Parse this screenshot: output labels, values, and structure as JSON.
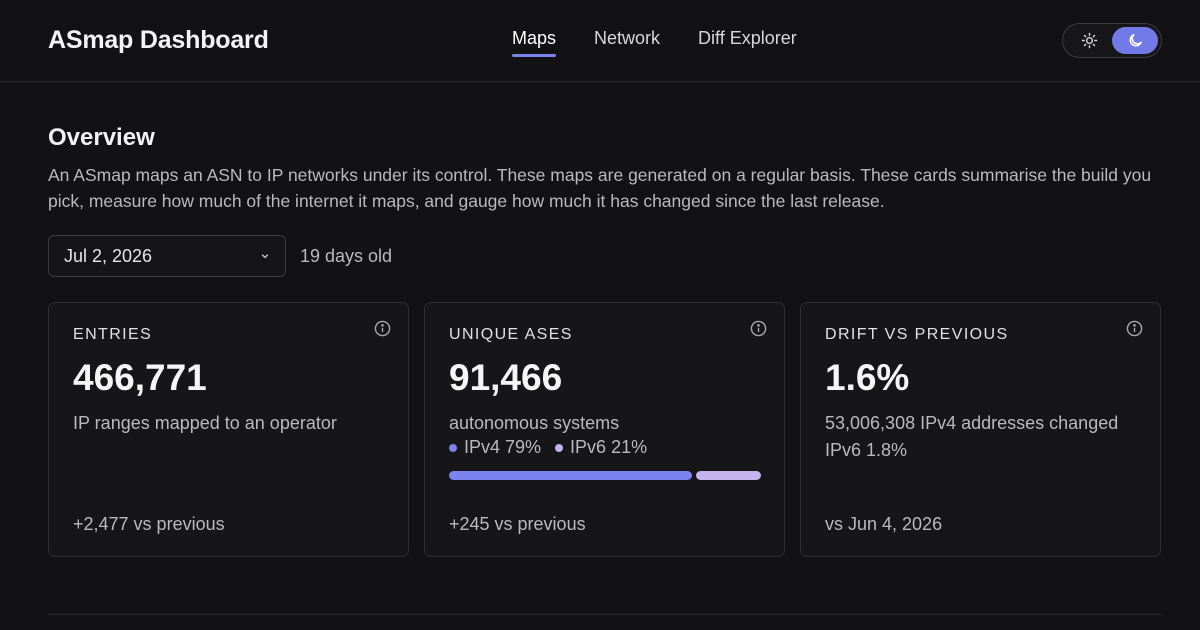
{
  "header": {
    "brand": "ASmap Dashboard",
    "nav": [
      {
        "label": "Maps",
        "active": true
      },
      {
        "label": "Network",
        "active": false
      },
      {
        "label": "Diff Explorer",
        "active": false
      }
    ],
    "theme_toggle": {
      "options": [
        "sun-icon",
        "moon-icon"
      ],
      "selected": "dark"
    }
  },
  "overview": {
    "title": "Overview",
    "description": "An ASmap maps an ASN to IP networks under its control. These maps are generated on a regular basis. These cards summarise the build you pick, measure how much of the internet it maps, and gauge how much it has changed since the last release.",
    "date_select": {
      "value": "Jul 2, 2026"
    },
    "age_label": "19 days old"
  },
  "cards": {
    "entries": {
      "label": "ENTRIES",
      "value": "466,771",
      "sub": "IP ranges mapped to an operator",
      "footer": "+2,477 vs previous"
    },
    "unique_ases": {
      "label": "UNIQUE ASES",
      "value": "91,466",
      "sub": "autonomous systems",
      "legend": [
        {
          "label": "IPv4 79%",
          "color": "#7b83f0",
          "fraction": 0.79
        },
        {
          "label": "IPv6 21%",
          "color": "#c5b3ef",
          "fraction": 0.21
        }
      ],
      "footer": "+245 vs previous"
    },
    "drift": {
      "label": "DRIFT VS PREVIOUS",
      "value": "1.6%",
      "sub": "53,006,308 IPv4 addresses changed",
      "sub2": "IPv6 1.8%",
      "footer": "vs Jun 4, 2026"
    }
  },
  "colors": {
    "accent": "#7b83f0",
    "ipv6": "#c5b3ef",
    "background": "#121214"
  }
}
